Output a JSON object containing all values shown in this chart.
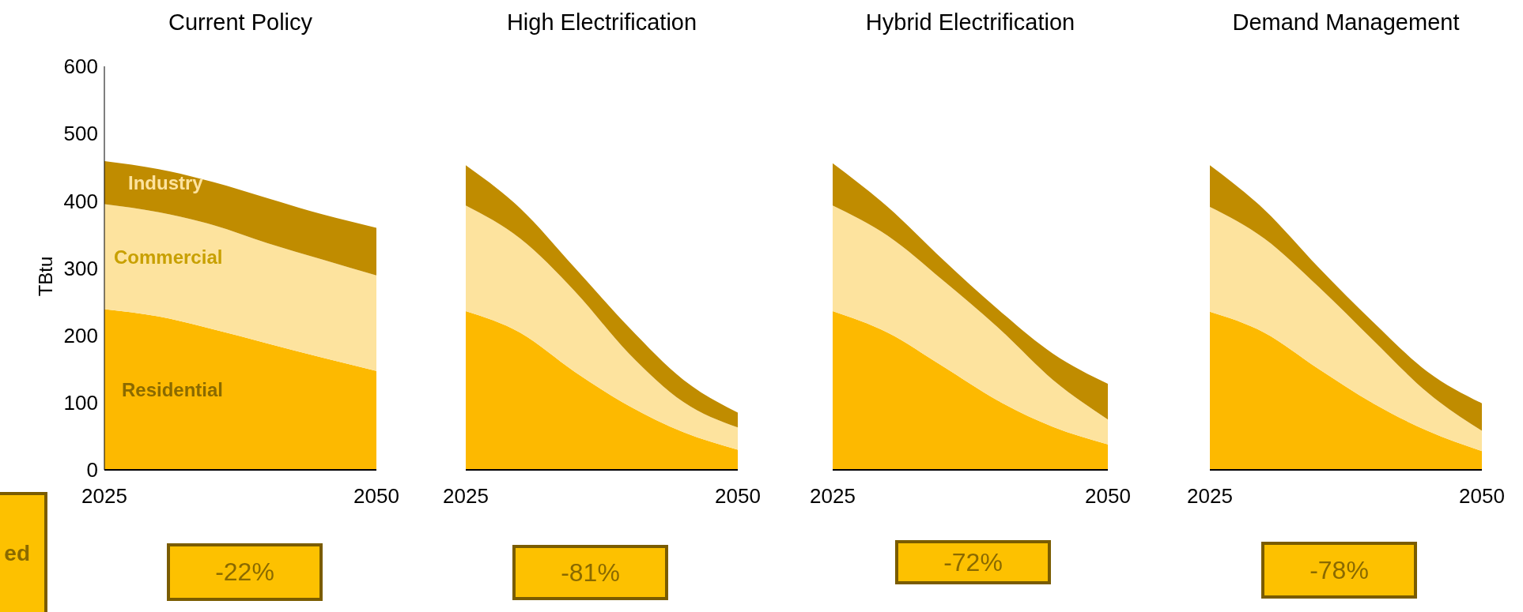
{
  "chart_data": [
    {
      "type": "area",
      "title": "Current Policy",
      "ylabel": "TBtu",
      "stacked": true,
      "categories": [
        "2025",
        null,
        null,
        null,
        null,
        "2050"
      ],
      "ylim": [
        0,
        600
      ],
      "yticks": [
        0,
        100,
        200,
        300,
        400,
        500,
        600
      ],
      "series": [
        {
          "name": "Residential",
          "color": "#fdb900",
          "values": [
            239,
            228,
            209,
            188,
            167,
            147
          ]
        },
        {
          "name": "Commercial",
          "color": "#fde39e",
          "values": [
            156,
            155,
            155,
            149,
            146,
            142
          ]
        },
        {
          "name": "Industry",
          "color": "#c08c00",
          "values": [
            64,
            64,
            64,
            67,
            67,
            71
          ]
        }
      ],
      "annotations": [
        "-22%",
        "ed"
      ]
    },
    {
      "type": "area",
      "title": "High Electrification",
      "stacked": true,
      "tick_labels": "x",
      "categories": [
        "2025",
        null,
        null,
        null,
        null,
        "2050"
      ],
      "ylim": [
        0,
        600
      ],
      "yticks": [
        0,
        100,
        200,
        300,
        400,
        500,
        600
      ],
      "series": [
        {
          "color": "#fdb900",
          "values": [
            236,
            204,
            146,
            95,
            56,
            30
          ]
        },
        {
          "color": "#fde39e",
          "values": [
            157,
            140,
            120,
            78,
            45,
            33
          ]
        },
        {
          "color": "#c08c00",
          "values": [
            60,
            45,
            35,
            39,
            33,
            22
          ]
        }
      ],
      "annotations": [
        "-81%"
      ]
    },
    {
      "type": "area",
      "title": "Hybrid Electrification",
      "stacked": true,
      "tick_labels": "x",
      "categories": [
        "2025",
        null,
        null,
        null,
        null,
        "2050"
      ],
      "ylim": [
        0,
        600
      ],
      "yticks": [
        0,
        100,
        200,
        300,
        400,
        500,
        600
      ],
      "series": [
        {
          "color": "#fdb900",
          "values": [
            236,
            204,
            154,
            103,
            64,
            38
          ]
        },
        {
          "color": "#fde39e",
          "values": [
            157,
            144,
            128,
            109,
            70,
            37
          ]
        },
        {
          "color": "#c08c00",
          "values": [
            63,
            43,
            31,
            27,
            39,
            53
          ]
        }
      ],
      "annotations": [
        "-72%"
      ]
    },
    {
      "type": "area",
      "title": "Demand Management",
      "stacked": true,
      "tick_labels": "x",
      "categories": [
        "2025",
        null,
        null,
        null,
        null,
        "2050"
      ],
      "ylim": [
        0,
        600
      ],
      "yticks": [
        0,
        100,
        200,
        300,
        400,
        500,
        600
      ],
      "series": [
        {
          "color": "#fdb900",
          "values": [
            235,
            204,
            150,
            99,
            58,
            28
          ]
        },
        {
          "color": "#fde39e",
          "values": [
            156,
            140,
            122,
            94,
            57,
            30
          ]
        },
        {
          "color": "#c08c00",
          "values": [
            62,
            43,
            29,
            27,
            31,
            41
          ]
        }
      ],
      "annotations": [
        "-78%"
      ]
    }
  ]
}
